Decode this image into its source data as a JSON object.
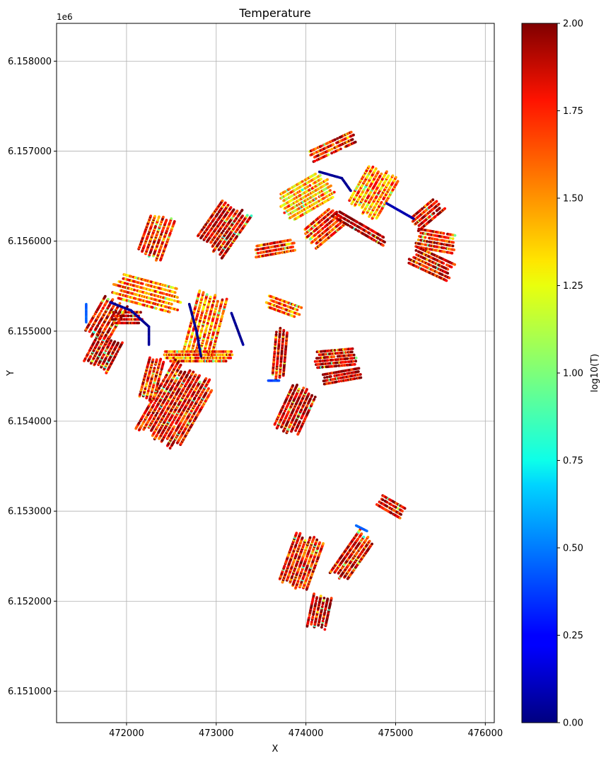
{
  "chart_data": {
    "type": "scatter",
    "title": "Temperature",
    "xlabel": "X",
    "ylabel": "Y",
    "y_offset_label": "1e6",
    "xlim": [
      471220,
      476100
    ],
    "ylim": [
      6150650,
      6158420
    ],
    "x_ticks": [
      472000,
      473000,
      474000,
      475000,
      476000
    ],
    "x_tick_labels": [
      "472000",
      "473000",
      "474000",
      "475000",
      "476000"
    ],
    "y_ticks": [
      6151000,
      6152000,
      6153000,
      6154000,
      6155000,
      6156000,
      6157000,
      6158000
    ],
    "y_tick_labels": [
      "6.151000",
      "6.152000",
      "6.153000",
      "6.154000",
      "6.155000",
      "6.156000",
      "6.157000",
      "6.158000"
    ],
    "grid": true,
    "colorbar": {
      "label": "log10(T)",
      "colormap": "jet",
      "range": [
        0,
        2
      ],
      "ticks": [
        0,
        0.25,
        0.5,
        0.75,
        1.0,
        1.25,
        1.5,
        1.75,
        2.0
      ],
      "tick_labels": [
        "0.00",
        "0.25",
        "0.50",
        "0.75",
        "1.00",
        "1.25",
        "1.50",
        "1.75",
        "2.00"
      ]
    },
    "fields": [
      {
        "center": [
          472330,
          6156050
        ],
        "angle": 70,
        "len": 500,
        "rows": 7,
        "spacing": 45,
        "value": 1.7
      },
      {
        "center": [
          472230,
          6155420
        ],
        "angle": -15,
        "len": 780,
        "rows": 7,
        "spacing": 45,
        "value": 1.55
      },
      {
        "center": [
          473080,
          6156150
        ],
        "angle": 55,
        "len": 600,
        "rows": 10,
        "spacing": 40,
        "value": 1.85
      },
      {
        "center": [
          473650,
          6155920
        ],
        "angle": 10,
        "len": 500,
        "rows": 4,
        "spacing": 40,
        "value": 1.75
      },
      {
        "center": [
          471770,
          6155130
        ],
        "angle": 60,
        "len": 500,
        "rows": 7,
        "spacing": 45,
        "value": 1.8
      },
      {
        "center": [
          471740,
          6154770
        ],
        "angle": 62,
        "len": 400,
        "rows": 8,
        "spacing": 40,
        "value": 1.9
      },
      {
        "center": [
          472000,
          6155150
        ],
        "angle": 0,
        "len": 350,
        "rows": 4,
        "spacing": 40,
        "value": 1.85
      },
      {
        "center": [
          472880,
          6155080
        ],
        "angle": 75,
        "len": 700,
        "rows": 8,
        "spacing": 45,
        "value": 1.55
      },
      {
        "center": [
          472800,
          6154720
        ],
        "angle": 0,
        "len": 780,
        "rows": 4,
        "spacing": 35,
        "value": 1.6
      },
      {
        "center": [
          472550,
          6154170
        ],
        "angle": 60,
        "len": 900,
        "rows": 14,
        "spacing": 40,
        "value": 1.8
      },
      {
        "center": [
          472280,
          6154470
        ],
        "angle": 75,
        "len": 500,
        "rows": 5,
        "spacing": 40,
        "value": 1.75
      },
      {
        "center": [
          473750,
          6155270
        ],
        "angle": -20,
        "len": 400,
        "rows": 4,
        "spacing": 40,
        "value": 1.6
      },
      {
        "center": [
          473710,
          6154750
        ],
        "angle": 85,
        "len": 600,
        "rows": 4,
        "spacing": 40,
        "value": 1.85
      },
      {
        "center": [
          473880,
          6154120
        ],
        "angle": 65,
        "len": 550,
        "rows": 8,
        "spacing": 40,
        "value": 1.9
      },
      {
        "center": [
          474330,
          6154700
        ],
        "angle": 5,
        "len": 500,
        "rows": 6,
        "spacing": 35,
        "value": 1.9
      },
      {
        "center": [
          474400,
          6154500
        ],
        "angle": 10,
        "len": 500,
        "rows": 4,
        "spacing": 35,
        "value": 1.9
      },
      {
        "center": [
          474000,
          6156500
        ],
        "angle": 30,
        "len": 600,
        "rows": 9,
        "spacing": 40,
        "value": 1.4
      },
      {
        "center": [
          474300,
          6157050
        ],
        "angle": 25,
        "len": 550,
        "rows": 4,
        "spacing": 40,
        "value": 1.75
      },
      {
        "center": [
          474750,
          6156550
        ],
        "angle": 60,
        "len": 550,
        "rows": 10,
        "spacing": 40,
        "value": 1.5
      },
      {
        "center": [
          474200,
          6156150
        ],
        "angle": 40,
        "len": 450,
        "rows": 7,
        "spacing": 40,
        "value": 1.7
      },
      {
        "center": [
          474600,
          6156150
        ],
        "angle": -30,
        "len": 700,
        "rows": 3,
        "spacing": 40,
        "value": 1.95
      },
      {
        "center": [
          475350,
          6156300
        ],
        "angle": 40,
        "len": 400,
        "rows": 5,
        "spacing": 40,
        "value": 1.85
      },
      {
        "center": [
          475450,
          6156000
        ],
        "angle": -10,
        "len": 450,
        "rows": 6,
        "spacing": 40,
        "value": 1.75
      },
      {
        "center": [
          475400,
          6155750
        ],
        "angle": -25,
        "len": 500,
        "rows": 6,
        "spacing": 40,
        "value": 1.85
      },
      {
        "center": [
          473950,
          6152440
        ],
        "angle": 70,
        "len": 650,
        "rows": 9,
        "spacing": 40,
        "value": 1.75
      },
      {
        "center": [
          474520,
          6152500
        ],
        "angle": 55,
        "len": 600,
        "rows": 6,
        "spacing": 40,
        "value": 1.8
      },
      {
        "center": [
          474150,
          6151880
        ],
        "angle": 78,
        "len": 400,
        "rows": 6,
        "spacing": 40,
        "value": 1.95
      },
      {
        "center": [
          474950,
          6153050
        ],
        "angle": -30,
        "len": 350,
        "rows": 4,
        "spacing": 40,
        "value": 1.85
      }
    ],
    "tracks": [
      {
        "points": [
          [
            471820,
            6155320
          ],
          [
            472050,
            6155230
          ],
          [
            472250,
            6155050
          ],
          [
            472250,
            6154850
          ]
        ],
        "value": 0.0
      },
      {
        "points": [
          [
            472700,
            6155300
          ],
          [
            472780,
            6155000
          ],
          [
            472830,
            6154720
          ]
        ],
        "value": 0.0
      },
      {
        "points": [
          [
            473170,
            6155200
          ],
          [
            473300,
            6154850
          ]
        ],
        "value": 0.0
      },
      {
        "points": [
          [
            474150,
            6156770
          ],
          [
            474400,
            6156700
          ],
          [
            474500,
            6156560
          ]
        ],
        "value": 0.0
      },
      {
        "points": [
          [
            474900,
            6156420
          ],
          [
            475200,
            6156250
          ]
        ],
        "value": 0.05
      },
      {
        "points": [
          [
            471550,
            6155300
          ],
          [
            471550,
            6155100
          ]
        ],
        "value": 0.4
      },
      {
        "points": [
          [
            473580,
            6154450
          ],
          [
            473700,
            6154450
          ]
        ],
        "value": 0.35
      },
      {
        "points": [
          [
            474560,
            6152840
          ],
          [
            474680,
            6152780
          ]
        ],
        "value": 0.4
      }
    ]
  }
}
